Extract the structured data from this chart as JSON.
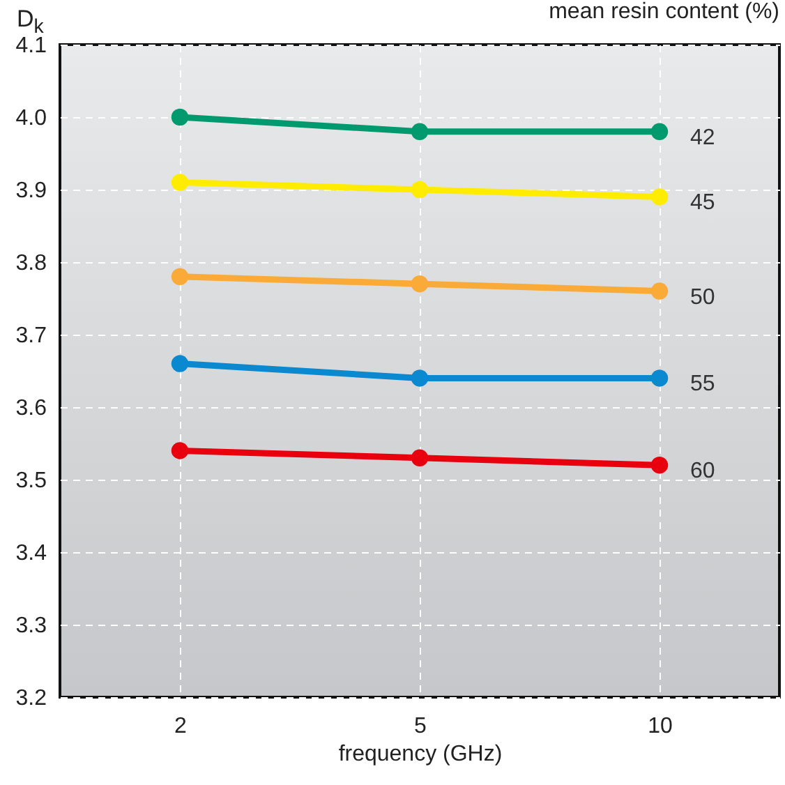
{
  "chart_data": {
    "type": "line",
    "ylabel": "D$_{k}$",
    "xlabel": "frequency (GHz)",
    "legend_title": "mean resin content (%)",
    "categories": [
      "2",
      "5",
      "10"
    ],
    "series": [
      {
        "name": "42",
        "color": "#009a6e",
        "values": [
          4.0,
          3.98,
          3.98
        ]
      },
      {
        "name": "45",
        "color": "#ffec00",
        "values": [
          3.91,
          3.9,
          3.89
        ]
      },
      {
        "name": "50",
        "color": "#f9aa37",
        "values": [
          3.78,
          3.77,
          3.76
        ]
      },
      {
        "name": "55",
        "color": "#0a88d0",
        "values": [
          3.66,
          3.64,
          3.64
        ]
      },
      {
        "name": "60",
        "color": "#e8000f",
        "values": [
          3.54,
          3.53,
          3.52
        ]
      }
    ],
    "ylim": [
      3.2,
      4.1
    ],
    "yticks": [
      3.2,
      3.3,
      3.4,
      3.5,
      3.6,
      3.7,
      3.8,
      3.9,
      {
        "value": 4,
        "label": "4.0"
      },
      4.1
    ],
    "grid": true,
    "marker": "circle",
    "line_style": "solid"
  }
}
